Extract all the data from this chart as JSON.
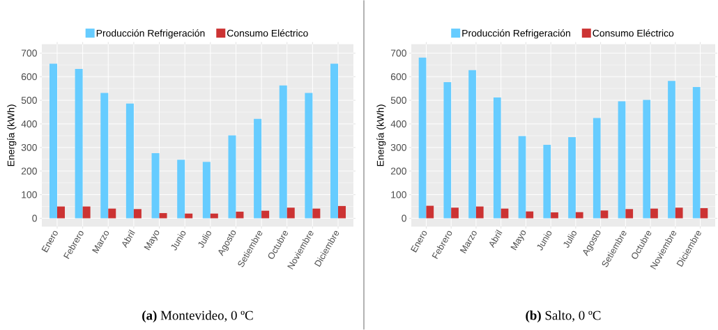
{
  "chart_data": [
    {
      "type": "bar",
      "title": "**(a)** Montevideo, 0 ºC",
      "ylabel": "Energía (kWh)",
      "categories": [
        "Enero",
        "Febrero",
        "Marzo",
        "Abril",
        "Mayo",
        "Junio",
        "Julio",
        "Agosto",
        "Setiembre",
        "Octubre",
        "Noviembre",
        "Diciembre"
      ],
      "series": [
        {
          "name": "Producción Refrigeración",
          "color": "#66ccff",
          "values": [
            655,
            633,
            531,
            486,
            276,
            248,
            239,
            351,
            421,
            563,
            531,
            655
          ]
        },
        {
          "name": "Consumo Eléctrico",
          "color": "#cc3333",
          "values": [
            50,
            50,
            41,
            39,
            22,
            20,
            20,
            28,
            32,
            45,
            41,
            52
          ]
        }
      ],
      "ylim": [
        -35,
        738
      ],
      "yticks": [
        0,
        100,
        200,
        300,
        400,
        500,
        600,
        700
      ],
      "grid": true,
      "legend": "top"
    },
    {
      "type": "bar",
      "title": "**(b)** Salto, 0 ºC",
      "ylabel": "Energía (kWh)",
      "categories": [
        "Enero",
        "Febrero",
        "Marzo",
        "Abril",
        "Mayo",
        "Junio",
        "Julio",
        "Agosto",
        "Setiembre",
        "Octubre",
        "Noviembre",
        "Diciembre"
      ],
      "series": [
        {
          "name": "Producción Refrigeración",
          "color": "#66ccff",
          "values": [
            681,
            577,
            628,
            512,
            348,
            311,
            344,
            425,
            496,
            502,
            582,
            556
          ]
        },
        {
          "name": "Consumo Eléctrico",
          "color": "#cc3333",
          "values": [
            53,
            45,
            50,
            41,
            29,
            25,
            26,
            33,
            39,
            41,
            45,
            43
          ]
        }
      ],
      "ylim": [
        -35,
        738
      ],
      "yticks": [
        0,
        100,
        200,
        300,
        400,
        500,
        600,
        700
      ],
      "grid": true,
      "legend": "top"
    }
  ]
}
